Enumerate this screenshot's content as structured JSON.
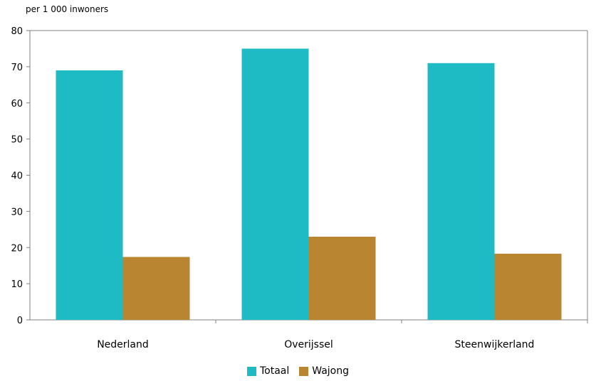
{
  "chart_data": {
    "type": "bar",
    "ylabel": "per 1 000 inwoners",
    "categories": [
      "Nederland",
      "Overijssel",
      "Steenwijkerland"
    ],
    "series": [
      {
        "name": "Totaal",
        "color": "#1FBBC4",
        "values": [
          69,
          75,
          71
        ]
      },
      {
        "name": "Wajong",
        "color": "#B98530",
        "values": [
          17.4,
          23,
          18.3
        ]
      }
    ],
    "ylim": [
      0,
      80
    ],
    "yticks": [
      "0",
      "10",
      "20",
      "30",
      "40",
      "50",
      "60",
      "70",
      "80"
    ],
    "grid": false,
    "legend_position": "bottom"
  }
}
